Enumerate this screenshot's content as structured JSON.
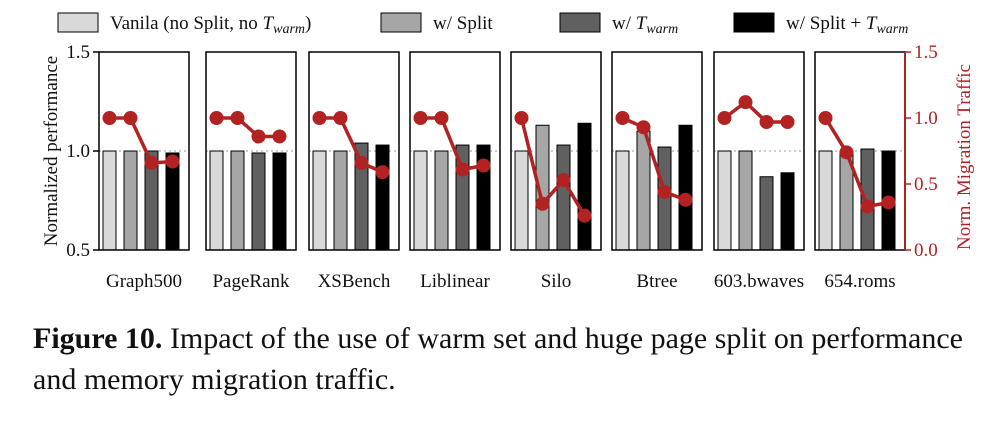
{
  "chart_data": {
    "type": "bar",
    "legend": [
      {
        "name": "Vanila (no Split, no T",
        "sub": "warm",
        "suffix": ")",
        "color": "#d9d9d9"
      },
      {
        "name": "w/ Split",
        "sub": "",
        "suffix": "",
        "color": "#a6a6a6"
      },
      {
        "name": "w/ T",
        "sub": "warm",
        "suffix": "",
        "color": "#606060"
      },
      {
        "name": "w/ Split + T",
        "sub": "warm",
        "suffix": "",
        "color": "#000000"
      }
    ],
    "legend_placement": "top",
    "ylabel": "Normalized performance",
    "y2label": "Norm. Migration Traffic",
    "ylim": [
      0.5,
      1.5
    ],
    "y2lim": [
      0.0,
      1.5
    ],
    "yticks": [
      "0.5",
      "1.0",
      "1.5"
    ],
    "y2ticks": [
      "0.0",
      "0.5",
      "1.0",
      "1.5"
    ],
    "line_color": "#b22222",
    "reference_line": 1.0,
    "groups": [
      {
        "name": "Graph500",
        "bars": [
          1.0,
          1.0,
          1.0,
          0.99
        ],
        "traffic": [
          1.0,
          1.0,
          0.66,
          0.67
        ]
      },
      {
        "name": "PageRank",
        "bars": [
          1.0,
          1.0,
          0.99,
          0.99
        ],
        "traffic": [
          1.0,
          1.0,
          0.86,
          0.86
        ]
      },
      {
        "name": "XSBench",
        "bars": [
          1.0,
          1.0,
          1.04,
          1.03
        ],
        "traffic": [
          1.0,
          1.0,
          0.66,
          0.59
        ]
      },
      {
        "name": "Liblinear",
        "bars": [
          1.0,
          1.0,
          1.03,
          1.03
        ],
        "traffic": [
          1.0,
          1.0,
          0.61,
          0.64
        ]
      },
      {
        "name": "Silo",
        "bars": [
          1.0,
          1.13,
          1.03,
          1.14
        ],
        "traffic": [
          1.0,
          0.35,
          0.53,
          0.26
        ]
      },
      {
        "name": "Btree",
        "bars": [
          1.0,
          1.1,
          1.02,
          1.13
        ],
        "traffic": [
          1.0,
          0.93,
          0.44,
          0.38
        ]
      },
      {
        "name": "603.bwaves",
        "bars": [
          1.0,
          1.0,
          0.87,
          0.89
        ],
        "traffic": [
          1.0,
          1.12,
          0.97,
          0.97
        ]
      },
      {
        "name": "654.roms",
        "bars": [
          1.0,
          1.0,
          1.01,
          1.0
        ],
        "traffic": [
          1.0,
          0.74,
          0.33,
          0.36
        ]
      }
    ]
  },
  "caption": {
    "label": "Figure 10.",
    "text": " Impact of the use of warm set and huge page split on performance and memory migration traffic."
  }
}
